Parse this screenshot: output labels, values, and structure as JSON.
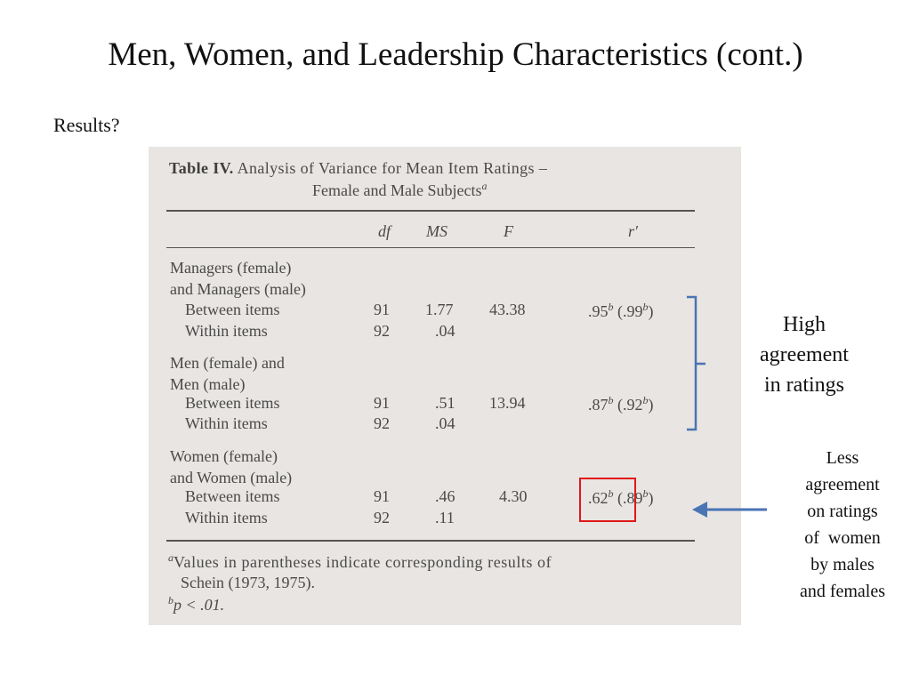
{
  "slide": {
    "title": "Men, Women, and Leadership Characteristics (cont.)",
    "subhead": "Results?"
  },
  "table": {
    "label": "Table IV.",
    "title_line1": "Analysis of Variance for Mean Item Ratings –",
    "title_line2": "Female and Male Subjects",
    "title_sup": "a",
    "columns": [
      "df",
      "MS",
      "F",
      "r′"
    ],
    "groups": [
      {
        "name_line1": "Managers (female)",
        "name_line2": "and Managers (male)",
        "rows": [
          {
            "label": "Between items",
            "df": "91",
            "ms": "1.77",
            "f": "43.38",
            "r": ".95",
            "r_sup": "b",
            "r_paren": "(.99",
            "r_paren_sup": "b",
            "r_close": ")"
          },
          {
            "label": "Within items",
            "df": "92",
            "ms": ".04",
            "f": "",
            "r": "",
            "r_sup": "",
            "r_paren": "",
            "r_paren_sup": "",
            "r_close": ""
          }
        ]
      },
      {
        "name_line1": "Men (female) and",
        "name_line2": "Men (male)",
        "rows": [
          {
            "label": "Between items",
            "df": "91",
            "ms": ".51",
            "f": "13.94",
            "r": ".87",
            "r_sup": "b",
            "r_paren": "(.92",
            "r_paren_sup": "b",
            "r_close": ")"
          },
          {
            "label": "Within items",
            "df": "92",
            "ms": ".04",
            "f": "",
            "r": "",
            "r_sup": "",
            "r_paren": "",
            "r_paren_sup": "",
            "r_close": ""
          }
        ]
      },
      {
        "name_line1": "Women (female)",
        "name_line2": "and Women (male)",
        "rows": [
          {
            "label": "Between items",
            "df": "91",
            "ms": ".46",
            "f": "4.30",
            "r": ".62",
            "r_sup": "b",
            "r_paren": "(.89",
            "r_paren_sup": "b",
            "r_close": ")"
          },
          {
            "label": "Within items",
            "df": "92",
            "ms": ".11",
            "f": "",
            "r": "",
            "r_sup": "",
            "r_paren": "",
            "r_paren_sup": "",
            "r_close": ""
          }
        ]
      }
    ],
    "footnote_a_mark": "a",
    "footnote_a_line1": "Values in parentheses indicate corresponding results of",
    "footnote_a_line2": "Schein (1973, 1975).",
    "footnote_b_mark": "b",
    "footnote_b_text": "p < .01."
  },
  "annotations": {
    "high": [
      "High",
      "agreement",
      "in ratings"
    ],
    "less": [
      "Less",
      "agreement",
      "on ratings",
      "of  women",
      "by males",
      "and females"
    ],
    "bracket_color": "#4a74b4",
    "arrow_color": "#4a74b4",
    "highlight_color": "#e01818"
  }
}
